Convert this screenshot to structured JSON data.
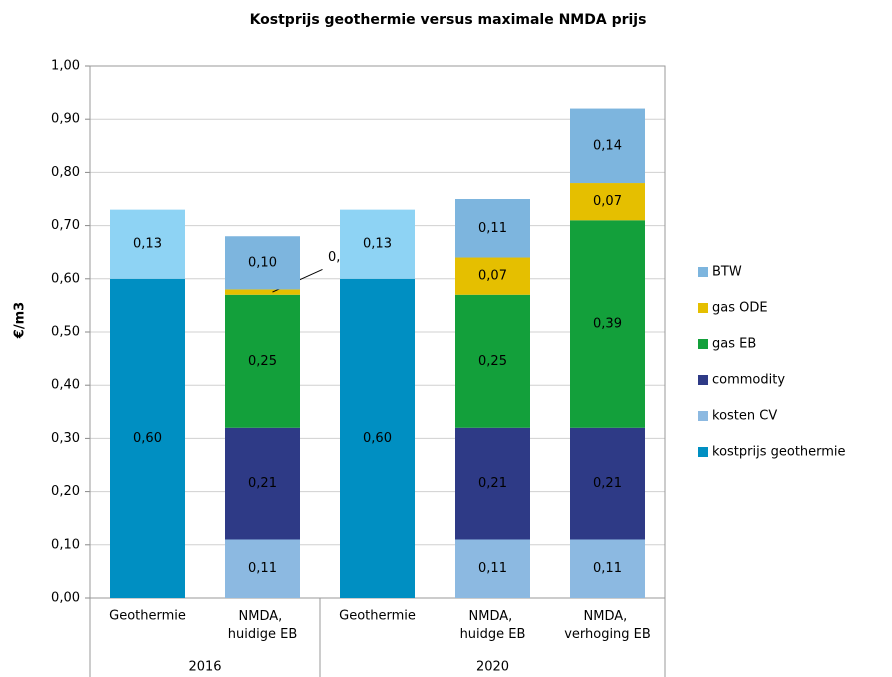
{
  "chart_data": {
    "type": "stacked_bar",
    "title": "Kostprijs geothermie versus maximale NMDA prijs",
    "ylabel": "€/m3",
    "categories": [
      "Geothermie",
      "NMDA, huidige EB",
      "Geothermie",
      "NMDA, huidge EB",
      "NMDA, verhoging EB"
    ],
    "groups": [
      {
        "label": "2016",
        "count": 2
      },
      {
        "label": "2020",
        "count": 3
      }
    ],
    "series": [
      {
        "name": "kostprijs geothermie",
        "color": "#008fc2",
        "values": [
          0.6,
          null,
          0.6,
          null,
          null
        ],
        "value_labels": [
          "0,60",
          null,
          "0,60",
          null,
          null
        ]
      },
      {
        "name": "kosten CV",
        "color": "#8cb9e1",
        "values": [
          null,
          0.11,
          null,
          0.11,
          0.11
        ],
        "value_labels": [
          null,
          "0,11",
          null,
          "0,11",
          "0,11"
        ]
      },
      {
        "name": "commodity",
        "color": "#2e3a86",
        "values": [
          null,
          0.21,
          null,
          0.21,
          0.21
        ],
        "value_labels": [
          null,
          "0,21",
          null,
          "0,21",
          "0,21"
        ]
      },
      {
        "name": "gas EB",
        "color": "#13a03b",
        "values": [
          null,
          0.25,
          null,
          0.25,
          0.39
        ],
        "value_labels": [
          null,
          "0,25",
          null,
          "0,25",
          "0,39"
        ]
      },
      {
        "name": "gas ODE",
        "color": "#e5bf00",
        "values": [
          null,
          0.01,
          null,
          0.07,
          0.07
        ],
        "value_labels": [
          null,
          "0,01",
          null,
          "0,07",
          "0,07"
        ]
      },
      {
        "name": "BTW",
        "color": "#7db5de",
        "colors": [
          "#8ed3f4",
          "#7db5de",
          "#8ed3f4",
          "#7db5de",
          "#7db5de"
        ],
        "values": [
          0.13,
          0.1,
          0.13,
          0.11,
          0.14
        ],
        "value_labels": [
          "0,13",
          "0,10",
          "0,13",
          "0,11",
          "0,14"
        ]
      }
    ],
    "ylim": [
      0,
      1
    ],
    "yticks": [
      {
        "value": 0,
        "label": "0,00"
      },
      {
        "value": 0.1,
        "label": "0,10"
      },
      {
        "value": 0.2,
        "label": "0,20"
      },
      {
        "value": 0.3,
        "label": "0,30"
      },
      {
        "value": 0.4,
        "label": "0,40"
      },
      {
        "value": 0.5,
        "label": "0,50"
      },
      {
        "value": 0.6,
        "label": "0,60"
      },
      {
        "value": 0.7,
        "label": "0,70"
      },
      {
        "value": 0.8,
        "label": "0,80"
      },
      {
        "value": 0.9,
        "label": "0,90"
      },
      {
        "value": 1,
        "label": "1,00"
      }
    ],
    "grid": true,
    "legend": "right"
  }
}
